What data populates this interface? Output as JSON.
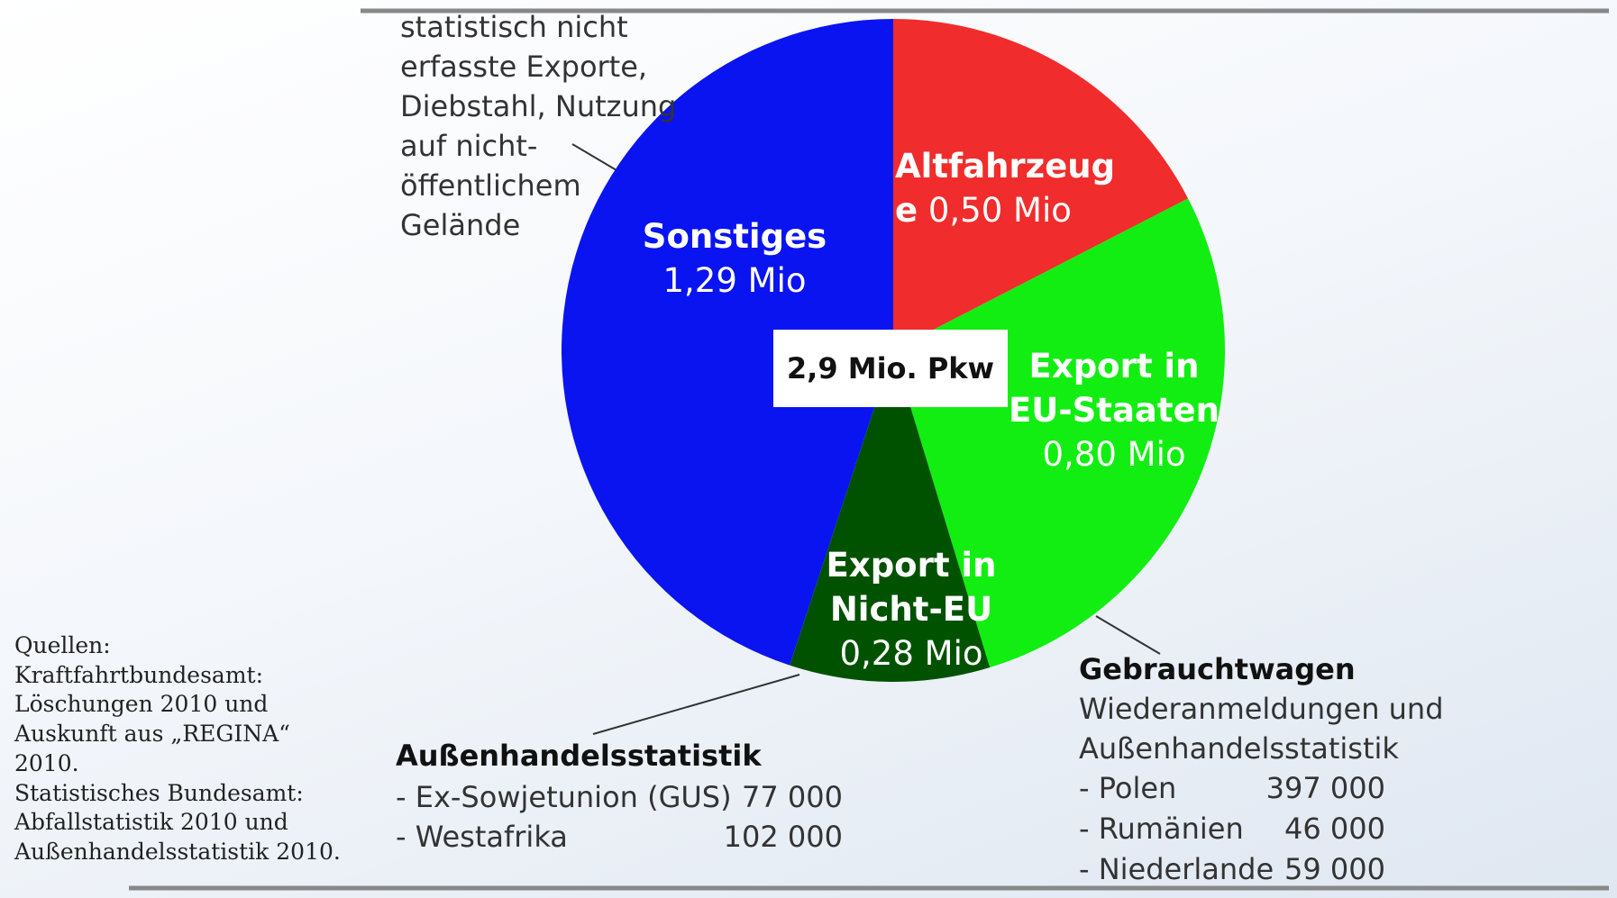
{
  "chart_data": {
    "type": "pie",
    "categories": [
      "Altfahrzeuge",
      "Export in EU-Staaten",
      "Export in Nicht-EU",
      "Sonstiges"
    ],
    "values": [
      0.5,
      0.8,
      0.28,
      1.29
    ],
    "value_labels": [
      "0,50 Mio",
      "0,80 Mio",
      "0,28 Mio",
      "1,29 Mio"
    ],
    "colors": [
      "#f02c2c",
      "#12ee12",
      "#005200",
      "#0a14f0"
    ],
    "total_label": "2,9 Mio. Pkw"
  },
  "notes": {
    "sonstiges": [
      "statistisch nicht",
      "erfasste Exporte,",
      "Diebstahl, Nutzung",
      "auf nicht-",
      "öffentlichem",
      "Gelände"
    ],
    "aussenhandel": {
      "title": "Außenhandelsstatistik",
      "rows": [
        [
          "- Ex-Sowjetunion (GUS)",
          "77 000"
        ],
        [
          "- Westafrika",
          "102 000"
        ]
      ]
    },
    "gebrauchtwagen": {
      "title": "Gebrauchtwagen",
      "lines": [
        "Wiederanmeldungen und",
        "Außenhandelsstatistik"
      ],
      "rows": [
        [
          "- Polen",
          "397 000"
        ],
        [
          "- Rumänien",
          "46 000"
        ],
        [
          "- Niederlande",
          "59 000"
        ]
      ]
    },
    "sources": [
      "Quellen:",
      "Kraftfahrtbundesamt:",
      "Löschungen 2010 und",
      "Auskunft aus „REGINA“",
      "2010.",
      "Statistisches Bundesamt:",
      "Abfallstatistik 2010 und",
      "Außenhandelsstatistik 2010."
    ]
  }
}
